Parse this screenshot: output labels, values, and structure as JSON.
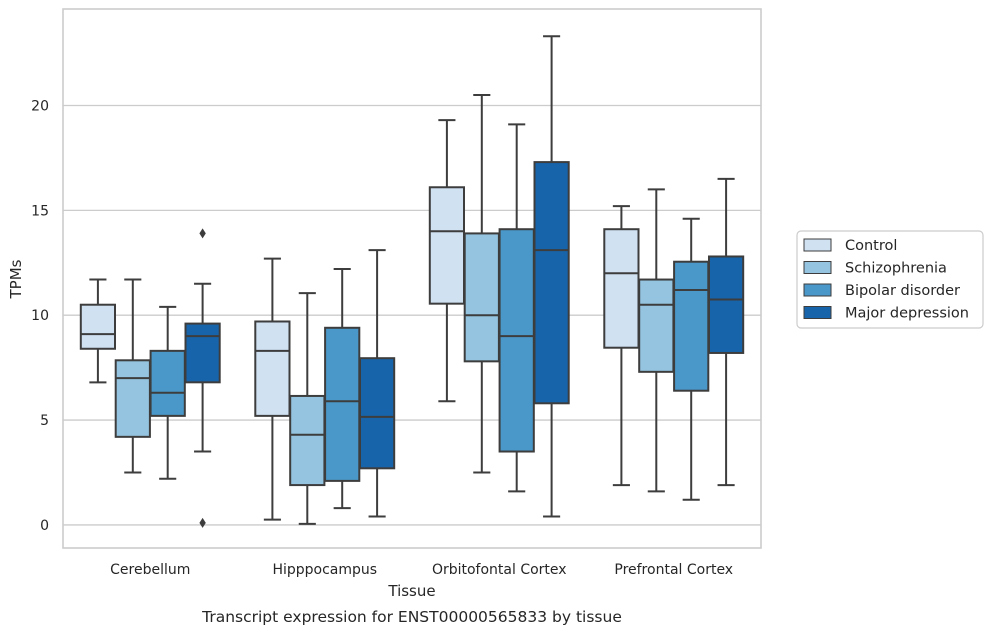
{
  "chart_data": {
    "type": "box",
    "caption": "Transcript expression for ENST00000565833 by tissue",
    "xlabel": "Tissue",
    "ylabel": "TPMs",
    "ylim": [
      -1.1,
      24.6
    ],
    "yticks": [
      0,
      5,
      10,
      15,
      20
    ],
    "grid": "horizontal",
    "legend_position": "right",
    "categories": [
      "Cerebellum",
      "Hipppocampus",
      "Orbitofontal Cortex",
      "Prefrontal Cortex"
    ],
    "series": [
      {
        "name": "Control",
        "color": "#d0e1f2",
        "boxes": [
          {
            "whisker_low": 6.8,
            "q1": 8.4,
            "median": 9.1,
            "q3": 10.5,
            "whisker_high": 11.7,
            "outliers": []
          },
          {
            "whisker_low": 0.25,
            "q1": 5.2,
            "median": 8.3,
            "q3": 9.7,
            "whisker_high": 12.7,
            "outliers": []
          },
          {
            "whisker_low": 5.9,
            "q1": 10.55,
            "median": 14.0,
            "q3": 16.1,
            "whisker_high": 19.3,
            "outliers": []
          },
          {
            "whisker_low": 1.9,
            "q1": 8.45,
            "median": 12.0,
            "q3": 14.1,
            "whisker_high": 15.2,
            "outliers": []
          }
        ]
      },
      {
        "name": "Schizophrenia",
        "color": "#94c4df",
        "boxes": [
          {
            "whisker_low": 2.5,
            "q1": 4.2,
            "median": 7.0,
            "q3": 7.85,
            "whisker_high": 11.7,
            "outliers": []
          },
          {
            "whisker_low": 0.05,
            "q1": 1.9,
            "median": 4.3,
            "q3": 6.15,
            "whisker_high": 11.05,
            "outliers": []
          },
          {
            "whisker_low": 2.5,
            "q1": 7.8,
            "median": 10.0,
            "q3": 13.9,
            "whisker_high": 20.5,
            "outliers": []
          },
          {
            "whisker_low": 1.6,
            "q1": 7.3,
            "median": 10.5,
            "q3": 11.7,
            "whisker_high": 16.0,
            "outliers": []
          }
        ]
      },
      {
        "name": "Bipolar disorder",
        "color": "#4a98c9",
        "boxes": [
          {
            "whisker_low": 2.2,
            "q1": 5.2,
            "median": 6.3,
            "q3": 8.3,
            "whisker_high": 10.4,
            "outliers": []
          },
          {
            "whisker_low": 0.8,
            "q1": 2.1,
            "median": 5.9,
            "q3": 9.4,
            "whisker_high": 12.2,
            "outliers": []
          },
          {
            "whisker_low": 1.6,
            "q1": 3.5,
            "median": 9.0,
            "q3": 14.1,
            "whisker_high": 19.1,
            "outliers": []
          },
          {
            "whisker_low": 1.2,
            "q1": 6.4,
            "median": 11.2,
            "q3": 12.55,
            "whisker_high": 14.6,
            "outliers": []
          }
        ]
      },
      {
        "name": "Major depression",
        "color": "#1764ab",
        "boxes": [
          {
            "whisker_low": 3.5,
            "q1": 6.8,
            "median": 9.0,
            "q3": 9.6,
            "whisker_high": 11.5,
            "outliers": [
              13.9,
              0.1
            ]
          },
          {
            "whisker_low": 0.4,
            "q1": 2.7,
            "median": 5.15,
            "q3": 7.95,
            "whisker_high": 13.1,
            "outliers": []
          },
          {
            "whisker_low": 0.4,
            "q1": 5.8,
            "median": 13.1,
            "q3": 17.3,
            "whisker_high": 23.3,
            "outliers": []
          },
          {
            "whisker_low": 1.9,
            "q1": 8.2,
            "median": 10.75,
            "q3": 12.8,
            "whisker_high": 16.5,
            "outliers": []
          }
        ]
      }
    ]
  },
  "colors": {
    "grid": "#cccccc",
    "frame": "#cccccc",
    "line": "#3d3d3d",
    "text": "#262626"
  }
}
